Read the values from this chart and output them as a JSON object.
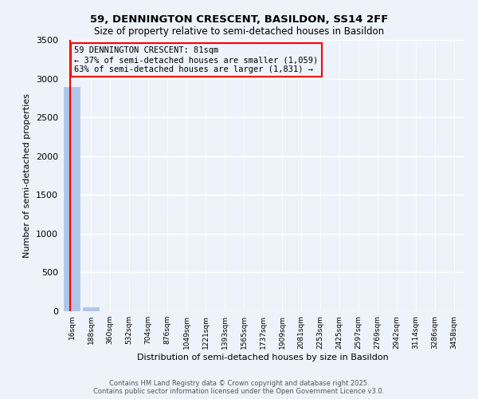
{
  "title1": "59, DENNINGTON CRESCENT, BASILDON, SS14 2FF",
  "title2": "Size of property relative to semi-detached houses in Basildon",
  "xlabel": "Distribution of semi-detached houses by size in Basildon",
  "ylabel": "Number of semi-detached properties",
  "categories": [
    "16sqm",
    "188sqm",
    "360sqm",
    "532sqm",
    "704sqm",
    "876sqm",
    "1049sqm",
    "1221sqm",
    "1393sqm",
    "1565sqm",
    "1737sqm",
    "1909sqm",
    "2081sqm",
    "2253sqm",
    "2425sqm",
    "2597sqm",
    "2769sqm",
    "2942sqm",
    "3114sqm",
    "3286sqm",
    "3458sqm"
  ],
  "bar_values": [
    2890,
    50,
    0,
    0,
    0,
    0,
    0,
    0,
    0,
    0,
    0,
    0,
    0,
    0,
    0,
    0,
    0,
    0,
    0,
    0,
    0
  ],
  "bar_color": "#aec6e8",
  "annotation_title": "59 DENNINGTON CRESCENT: 81sqm",
  "annotation_line2": "← 37% of semi-detached houses are smaller (1,059)",
  "annotation_line3": "63% of semi-detached houses are larger (1,831) →",
  "ylim": [
    0,
    3500
  ],
  "yticks": [
    0,
    500,
    1000,
    1500,
    2000,
    2500,
    3000,
    3500
  ],
  "bg_color": "#eef3fb",
  "grid_color": "#ffffff",
  "footer": "Contains HM Land Registry data © Crown copyright and database right 2025.\nContains public sector information licensed under the Open Government Licence v3.0."
}
